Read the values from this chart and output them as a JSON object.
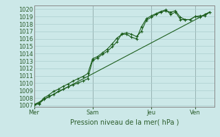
{
  "background_color": "#cce8e8",
  "grid_color": "#aacece",
  "line_color": "#1a5c1a",
  "spine_color": "#888888",
  "ylim": [
    1006.8,
    1020.5
  ],
  "ylabel": "Pression niveau de la mer( hPa )",
  "day_labels": [
    "Mer",
    "Sam",
    "Jeu",
    "Ven"
  ],
  "day_positions": [
    0,
    96,
    192,
    264
  ],
  "yticks": [
    1007,
    1008,
    1009,
    1010,
    1011,
    1012,
    1013,
    1014,
    1015,
    1016,
    1017,
    1018,
    1019,
    1020
  ],
  "series1_x": [
    0,
    8,
    16,
    24,
    32,
    40,
    48,
    56,
    64,
    72,
    80,
    88,
    96,
    104,
    112,
    120,
    128,
    136,
    144,
    152,
    160,
    168,
    176,
    184,
    192,
    200,
    208,
    216,
    224,
    232,
    240,
    248,
    256,
    264,
    272,
    280,
    288
  ],
  "series1_y": [
    1007.1,
    1007.2,
    1007.8,
    1008.2,
    1008.5,
    1008.9,
    1009.2,
    1009.5,
    1009.8,
    1010.0,
    1010.3,
    1010.6,
    1013.1,
    1013.4,
    1013.9,
    1014.3,
    1014.9,
    1015.6,
    1016.7,
    1016.8,
    1016.6,
    1016.3,
    1017.0,
    1018.5,
    1018.9,
    1019.3,
    1019.6,
    1019.8,
    1019.6,
    1019.8,
    1018.9,
    1018.6,
    1018.6,
    1019.0,
    1018.9,
    1019.3,
    1019.6
  ],
  "series2_x": [
    0,
    8,
    16,
    24,
    32,
    40,
    48,
    56,
    64,
    72,
    80,
    88,
    96,
    104,
    112,
    120,
    128,
    136,
    144,
    152,
    160,
    168,
    176,
    184,
    192,
    200,
    208,
    216,
    224,
    232,
    240,
    248,
    256,
    264,
    272,
    280,
    288
  ],
  "series2_y": [
    1007.1,
    1007.3,
    1008.0,
    1008.4,
    1008.9,
    1009.2,
    1009.6,
    1009.9,
    1010.3,
    1010.6,
    1010.9,
    1011.3,
    1013.3,
    1013.6,
    1014.1,
    1014.6,
    1015.3,
    1016.1,
    1016.6,
    1016.6,
    1016.2,
    1016.0,
    1017.6,
    1018.7,
    1019.1,
    1019.4,
    1019.7,
    1019.9,
    1019.3,
    1019.6,
    1018.6,
    1018.6,
    1018.6,
    1019.0,
    1019.1,
    1019.1,
    1019.6
  ],
  "series3_x": [
    0,
    288
  ],
  "series3_y": [
    1007.1,
    1019.6
  ],
  "xlim": [
    0,
    296
  ],
  "xlabel_fontsize": 7,
  "ylabel_fontsize": 6,
  "tick_fontsize": 6
}
